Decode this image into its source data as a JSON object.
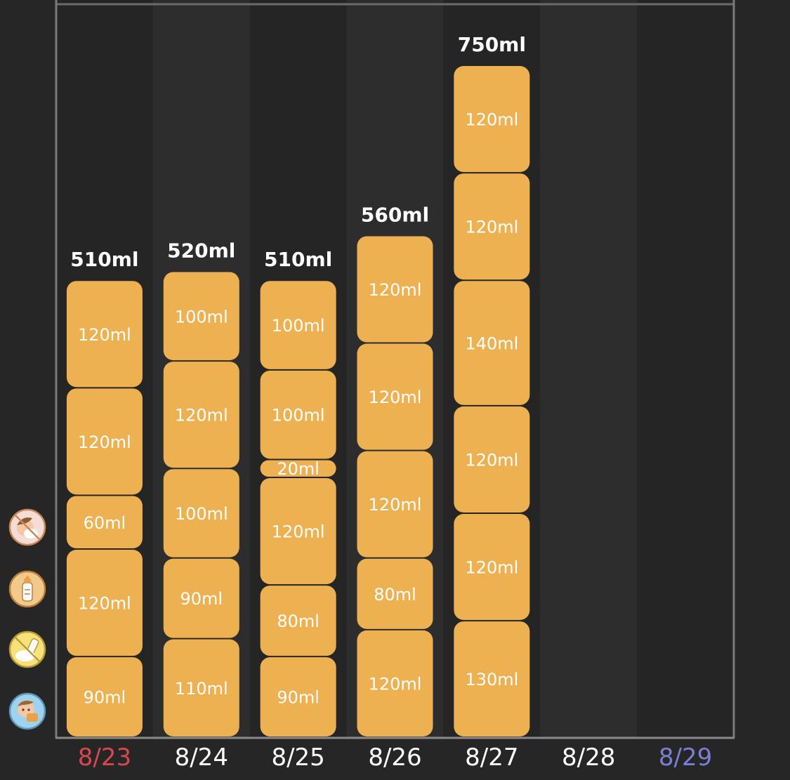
{
  "chart_data": {
    "type": "bar",
    "stacked": true,
    "categories": [
      "8/23",
      "8/24",
      "8/25",
      "8/26",
      "8/27",
      "8/28",
      "8/29"
    ],
    "category_colors": [
      "#d8474f",
      "#ffffff",
      "#ffffff",
      "#ffffff",
      "#ffffff",
      "#ffffff",
      "#7b7fd6"
    ],
    "totals": [
      "510ml",
      "520ml",
      "510ml",
      "560ml",
      "750ml",
      "",
      ""
    ],
    "segments": [
      [
        90,
        120,
        60,
        120,
        120
      ],
      [
        110,
        90,
        100,
        120,
        100
      ],
      [
        90,
        80,
        120,
        20,
        100,
        100
      ],
      [
        120,
        80,
        120,
        120,
        120
      ],
      [
        130,
        120,
        120,
        140,
        120,
        120
      ],
      [],
      []
    ],
    "unit": "ml",
    "ylim": [
      0,
      750
    ],
    "bar_color": "#eeb152",
    "grid": false,
    "legend_icons": [
      "breastfeeding-icon",
      "baby-bottle-icon",
      "pumped-milk-icon",
      "baby-food-icon"
    ],
    "icon_colors": {
      "breastfeeding": "#f5dcd6",
      "bottle": "#f2c98a",
      "pumped": "#f7e27a",
      "food": "#9ed3ef"
    }
  }
}
